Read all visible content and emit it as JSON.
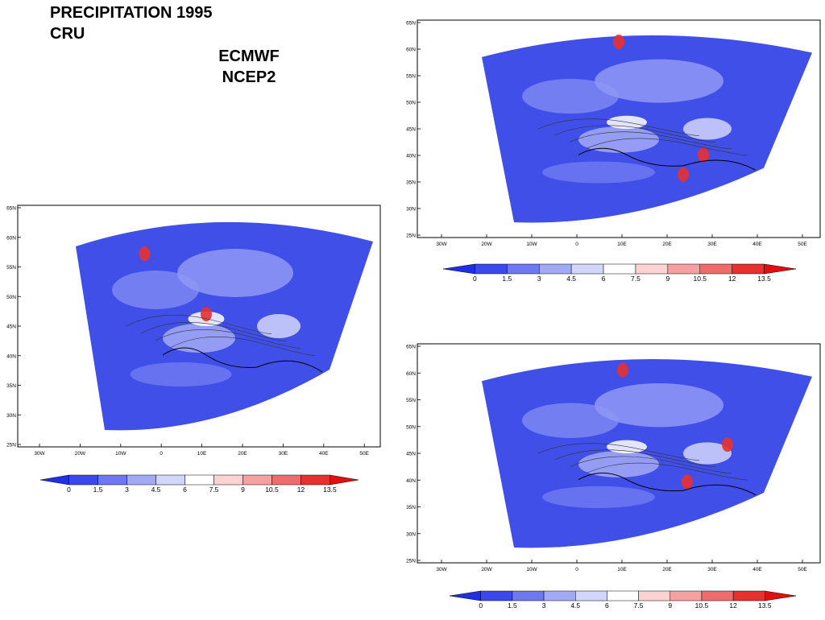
{
  "titles": {
    "main": "PRECIPITATION 1995",
    "cru": "CRU",
    "ecmwf": "ECMWF",
    "ncep2": "NCEP2"
  },
  "axes": {
    "lat_labels": [
      "65N",
      "60N",
      "55N",
      "50N",
      "45N",
      "40N",
      "35N",
      "30N",
      "25N"
    ],
    "lon_labels": [
      "30W",
      "20W",
      "10W",
      "0",
      "10E",
      "20E",
      "30E",
      "40E",
      "50E"
    ]
  },
  "colorbar": {
    "labels": [
      "0",
      "1.5",
      "3",
      "4.5",
      "6",
      "7.5",
      "9",
      "10.5",
      "12",
      "13.5"
    ],
    "colors": [
      "#1f2fe6",
      "#3a48ee",
      "#6e78f2",
      "#a3aaf5",
      "#d2d6fb",
      "#ffffff",
      "#fbd3d3",
      "#f6a1a1",
      "#ef6c6c",
      "#e8302f",
      "#e01010"
    ]
  },
  "panels": [
    {
      "name": "cru",
      "dataset": "CRU"
    },
    {
      "name": "ecmwf",
      "dataset": "ECMWF"
    },
    {
      "name": "ncep2",
      "dataset": "NCEP2"
    }
  ]
}
